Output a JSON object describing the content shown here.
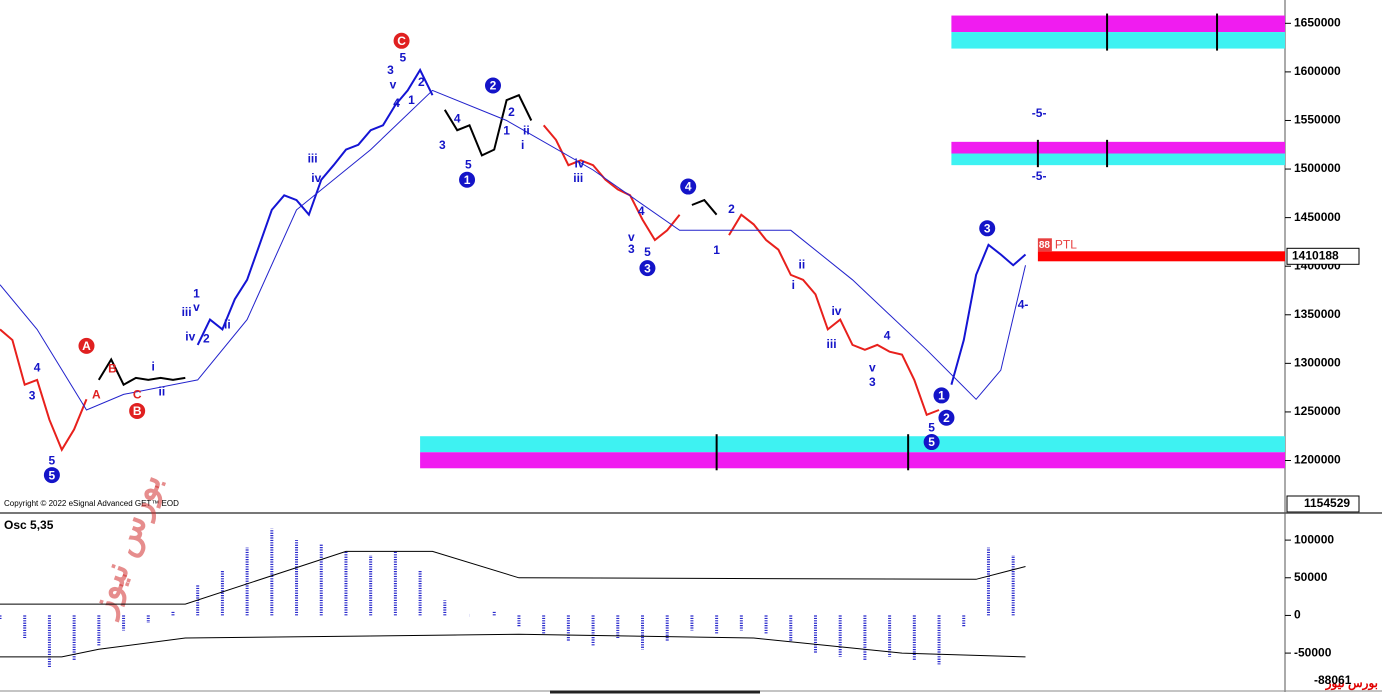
{
  "chart_data": [
    {
      "type": "line",
      "xlim": [
        0,
        104
      ],
      "ylim": [
        1147000,
        1674000
      ],
      "yticks": [
        1200000,
        1250000,
        1300000,
        1350000,
        1400000,
        1450000,
        1500000,
        1550000,
        1600000,
        1650000
      ],
      "series": [
        {
          "color": "#e8201c",
          "x": [
            0,
            1,
            2,
            3,
            4,
            5,
            6,
            7
          ],
          "values": [
            1335000,
            1324000,
            1278000,
            1283000,
            1242000,
            1211000,
            1232000,
            1263000
          ]
        },
        {
          "color": "#000000",
          "x": [
            8,
            9,
            10,
            11,
            12,
            13,
            14,
            15
          ],
          "values": [
            1283000,
            1304000,
            1278000,
            1285000,
            1283000,
            1285000,
            1283000,
            1285000
          ]
        },
        {
          "color": "#1414d4",
          "x": [
            16,
            17,
            18,
            19,
            20,
            21,
            22,
            23,
            24,
            25,
            26,
            27,
            28,
            29,
            30,
            31,
            32,
            33,
            34,
            35
          ],
          "values": [
            1319000,
            1345000,
            1335000,
            1366000,
            1386000,
            1422000,
            1458000,
            1473000,
            1468000,
            1453000,
            1489000,
            1504000,
            1520000,
            1525000,
            1540000,
            1545000,
            1566000,
            1581000,
            1602000,
            1576000
          ]
        },
        {
          "color": "#000000",
          "x": [
            36,
            37,
            38,
            39,
            40,
            41,
            42,
            43
          ],
          "values": [
            1561000,
            1540000,
            1545000,
            1514000,
            1520000,
            1571000,
            1576000,
            1550000
          ]
        },
        {
          "color": "#e8201c",
          "x": [
            44,
            45,
            46,
            47,
            48,
            49,
            50,
            51,
            52,
            53,
            54,
            55
          ],
          "values": [
            1545000,
            1530000,
            1504000,
            1509000,
            1504000,
            1489000,
            1479000,
            1473000,
            1448000,
            1427000,
            1437000,
            1453000
          ]
        },
        {
          "color": "#000000",
          "x": [
            56,
            57,
            58
          ],
          "values": [
            1463000,
            1468000,
            1453000
          ]
        },
        {
          "color": "#e8201c",
          "x": [
            59,
            60,
            61,
            62,
            63,
            64,
            65,
            66,
            67,
            68,
            69,
            70,
            71,
            72,
            73,
            74,
            75,
            76
          ],
          "values": [
            1432000,
            1453000,
            1443000,
            1427000,
            1417000,
            1391000,
            1386000,
            1371000,
            1335000,
            1345000,
            1319000,
            1314000,
            1319000,
            1312000,
            1309000,
            1283000,
            1247000,
            1252000
          ]
        },
        {
          "color": "#1414d4",
          "x": [
            77,
            78,
            79,
            80,
            81,
            82,
            83
          ],
          "values": [
            1278000,
            1324000,
            1391000,
            1422000,
            1412000,
            1401000,
            1412000
          ]
        },
        {
          "color": "#2222cc",
          "x": [
            0,
            3,
            7,
            10,
            16,
            20,
            24,
            30,
            35,
            41,
            48,
            55,
            64,
            69,
            75,
            79,
            81,
            83
          ],
          "values": [
            1381000,
            1335000,
            1252000,
            1268000,
            1283000,
            1345000,
            1458000,
            1520000,
            1581000,
            1550000,
            1499000,
            1437000,
            1437000,
            1386000,
            1314000,
            1263000,
            1293000,
            1401000
          ]
        }
      ],
      "zones": [
        {
          "from": 77,
          "low": 1624000,
          "high": 1658000,
          "colors": [
            "#f01cf0",
            "#3ef2f2"
          ],
          "markers": [
            89.6,
            98.5
          ]
        },
        {
          "from": 77,
          "low": 1504000,
          "high": 1528000,
          "colors": [
            "#f01cf0",
            "#3ef2f2"
          ],
          "markers": [
            84,
            89.6
          ]
        },
        {
          "from": 34,
          "low": 1192000,
          "high": 1225000,
          "colors": [
            "#3ef2f2",
            "#f01cf0"
          ],
          "markers": [
            58,
            73.5
          ]
        }
      ],
      "price_line": {
        "value": 1410188,
        "from": 84,
        "color": "#ff0000"
      },
      "ptl_value": 88,
      "ptl_label": "PTL",
      "bottom_readout": 1154529,
      "copyright": "Copyright © 2022 eSignal Advanced GET™ EOD",
      "watermark": "بورس نیوز",
      "annotations": [
        {
          "text": "5",
          "x": 4.2,
          "y": 1185000,
          "color": "#1414c8",
          "circled": true
        },
        {
          "text": "A",
          "x": 7,
          "y": 1318000,
          "color": "#e02020",
          "circled": true
        },
        {
          "text": "B",
          "x": 11.1,
          "y": 1251000,
          "color": "#e02020",
          "circled": true
        },
        {
          "text": "C",
          "x": 32.5,
          "y": 1632000,
          "color": "#e02020",
          "circled": true
        },
        {
          "text": "1",
          "x": 37.8,
          "y": 1489000,
          "color": "#1414c8",
          "circled": true
        },
        {
          "text": "2",
          "x": 39.9,
          "y": 1586000,
          "color": "#1414c8",
          "circled": true
        },
        {
          "text": "4",
          "x": 55.7,
          "y": 1482000,
          "color": "#1414c8",
          "circled": true
        },
        {
          "text": "3",
          "x": 52.4,
          "y": 1398000,
          "color": "#1414c8",
          "circled": true
        },
        {
          "text": "3",
          "x": 79.9,
          "y": 1439000,
          "color": "#1414c8",
          "circled": true
        },
        {
          "text": "1",
          "x": 76.2,
          "y": 1267000,
          "color": "#1414c8",
          "circled": true
        },
        {
          "text": "2",
          "x": 76.6,
          "y": 1244000,
          "color": "#1414c8",
          "circled": true
        },
        {
          "text": "5",
          "x": 75.4,
          "y": 1219000,
          "color": "#1414c8",
          "circled": true
        },
        {
          "text": "4",
          "x": 3,
          "y": 1296000,
          "color": "#1414c8",
          "circled": false
        },
        {
          "text": "3",
          "x": 2.6,
          "y": 1267000,
          "color": "#1414c8",
          "circled": false
        },
        {
          "text": "5",
          "x": 4.2,
          "y": 1200000,
          "color": "#1414c8",
          "circled": false
        },
        {
          "text": "A",
          "x": 7.8,
          "y": 1268000,
          "color": "#e02020",
          "circled": false
        },
        {
          "text": "B",
          "x": 9.1,
          "y": 1295000,
          "color": "#e02020",
          "circled": false
        },
        {
          "text": "C",
          "x": 11.1,
          "y": 1268000,
          "color": "#e02020",
          "circled": false
        },
        {
          "text": "i",
          "x": 12.4,
          "y": 1297000,
          "color": "#1414c8",
          "circled": false
        },
        {
          "text": "ii",
          "x": 13.1,
          "y": 1271000,
          "color": "#1414c8",
          "circled": false
        },
        {
          "text": "iii",
          "x": 15.1,
          "y": 1353000,
          "color": "#1414c8",
          "circled": false
        },
        {
          "text": "iv",
          "x": 15.4,
          "y": 1328000,
          "color": "#1414c8",
          "circled": false
        },
        {
          "text": "1",
          "x": 15.9,
          "y": 1372000,
          "color": "#1414c8",
          "circled": false
        },
        {
          "text": "v",
          "x": 15.9,
          "y": 1358000,
          "color": "#1414c8",
          "circled": false
        },
        {
          "text": "2",
          "x": 16.7,
          "y": 1326000,
          "color": "#1414c8",
          "circled": false
        },
        {
          "text": "ii",
          "x": 18.4,
          "y": 1340000,
          "color": "#1414c8",
          "circled": false
        },
        {
          "text": "iii",
          "x": 25.3,
          "y": 1511000,
          "color": "#1414c8",
          "circled": false
        },
        {
          "text": "iv",
          "x": 25.6,
          "y": 1491000,
          "color": "#1414c8",
          "circled": false
        },
        {
          "text": "5",
          "x": 32.6,
          "y": 1615000,
          "color": "#1414c8",
          "circled": false
        },
        {
          "text": "3",
          "x": 31.6,
          "y": 1602000,
          "color": "#1414c8",
          "circled": false
        },
        {
          "text": "v",
          "x": 31.8,
          "y": 1587000,
          "color": "#1414c8",
          "circled": false
        },
        {
          "text": "4",
          "x": 32.1,
          "y": 1568000,
          "color": "#1414c8",
          "circled": false
        },
        {
          "text": "1",
          "x": 33.3,
          "y": 1571000,
          "color": "#1414c8",
          "circled": false
        },
        {
          "text": "2",
          "x": 34.1,
          "y": 1590000,
          "color": "#1414c8",
          "circled": false
        },
        {
          "text": "4",
          "x": 37,
          "y": 1552000,
          "color": "#1414c8",
          "circled": false
        },
        {
          "text": "3",
          "x": 35.8,
          "y": 1525000,
          "color": "#1414c8",
          "circled": false
        },
        {
          "text": "5",
          "x": 37.9,
          "y": 1505000,
          "color": "#1414c8",
          "circled": false
        },
        {
          "text": "2",
          "x": 41.4,
          "y": 1559000,
          "color": "#1414c8",
          "circled": false
        },
        {
          "text": "1",
          "x": 41,
          "y": 1540000,
          "color": "#1414c8",
          "circled": false
        },
        {
          "text": "ii",
          "x": 42.6,
          "y": 1540000,
          "color": "#1414c8",
          "circled": false
        },
        {
          "text": "i",
          "x": 42.3,
          "y": 1525000,
          "color": "#1414c8",
          "circled": false
        },
        {
          "text": "iv",
          "x": 46.9,
          "y": 1506000,
          "color": "#1414c8",
          "circled": false
        },
        {
          "text": "iii",
          "x": 46.8,
          "y": 1491000,
          "color": "#1414c8",
          "circled": false
        },
        {
          "text": "4",
          "x": 51.9,
          "y": 1457000,
          "color": "#1414c8",
          "circled": false
        },
        {
          "text": "v",
          "x": 51.1,
          "y": 1430000,
          "color": "#1414c8",
          "circled": false
        },
        {
          "text": "3",
          "x": 51.1,
          "y": 1418000,
          "color": "#1414c8",
          "circled": false
        },
        {
          "text": "5",
          "x": 52.4,
          "y": 1415000,
          "color": "#1414c8",
          "circled": false
        },
        {
          "text": "2",
          "x": 59.2,
          "y": 1459000,
          "color": "#1414c8",
          "circled": false
        },
        {
          "text": "1",
          "x": 58,
          "y": 1417000,
          "color": "#1414c8",
          "circled": false
        },
        {
          "text": "ii",
          "x": 64.9,
          "y": 1402000,
          "color": "#1414c8",
          "circled": false
        },
        {
          "text": "i",
          "x": 64.2,
          "y": 1381000,
          "color": "#1414c8",
          "circled": false
        },
        {
          "text": "iv",
          "x": 67.7,
          "y": 1354000,
          "color": "#1414c8",
          "circled": false
        },
        {
          "text": "iii",
          "x": 67.3,
          "y": 1320000,
          "color": "#1414c8",
          "circled": false
        },
        {
          "text": "4",
          "x": 71.8,
          "y": 1329000,
          "color": "#1414c8",
          "circled": false
        },
        {
          "text": "v",
          "x": 70.6,
          "y": 1296000,
          "color": "#1414c8",
          "circled": false
        },
        {
          "text": "3",
          "x": 70.6,
          "y": 1281000,
          "color": "#1414c8",
          "circled": false
        },
        {
          "text": "5",
          "x": 75.4,
          "y": 1234000,
          "color": "#1414c8",
          "circled": false
        },
        {
          "text": "-5-",
          "x": 84.1,
          "y": 1558000,
          "color": "#1414c8",
          "circled": false
        },
        {
          "text": "-5-",
          "x": 84.1,
          "y": 1493000,
          "color": "#1414c8",
          "circled": false
        },
        {
          "text": "4-",
          "x": 82.8,
          "y": 1361000,
          "color": "#1414c8",
          "circled": false
        }
      ]
    },
    {
      "type": "bar",
      "title": "Osc 5,35",
      "xlim": [
        0,
        104
      ],
      "ylim": [
        -99000,
        132000
      ],
      "yticks": [
        -50000,
        0,
        50000,
        100000
      ],
      "bottom_readout": -88061,
      "bars": {
        "color": "#2a2acc",
        "x": [
          0,
          2,
          4,
          6,
          8,
          10,
          12,
          14,
          16,
          18,
          20,
          22,
          24,
          26,
          28,
          30,
          32,
          34,
          36,
          38,
          40,
          42,
          44,
          46,
          48,
          50,
          52,
          54,
          56,
          58,
          60,
          62,
          64,
          66,
          68,
          70,
          72,
          74,
          76,
          78,
          80,
          82
        ],
        "values": [
          -5000,
          -30000,
          -70000,
          -60000,
          -40000,
          -20000,
          -10000,
          5000,
          40000,
          60000,
          90000,
          115000,
          100000,
          95000,
          85000,
          80000,
          85000,
          60000,
          20000,
          0,
          5000,
          -15000,
          -25000,
          -35000,
          -40000,
          -30000,
          -45000,
          -35000,
          -20000,
          -25000,
          -20000,
          -25000,
          -35000,
          -50000,
          -55000,
          -60000,
          -55000,
          -60000,
          -65000,
          -15000,
          90000,
          80000
        ]
      },
      "series": [
        {
          "color": "#000000",
          "x": [
            0,
            15,
            28,
            35,
            42,
            79,
            83
          ],
          "values": [
            15000,
            15000,
            85000,
            85000,
            50000,
            48000,
            65000
          ]
        },
        {
          "color": "#000000",
          "x": [
            0,
            5,
            8,
            15,
            42,
            61,
            73,
            83
          ],
          "values": [
            -55000,
            -55000,
            -45000,
            -30000,
            -25000,
            -30000,
            -50000,
            -55000
          ]
        }
      ]
    }
  ]
}
